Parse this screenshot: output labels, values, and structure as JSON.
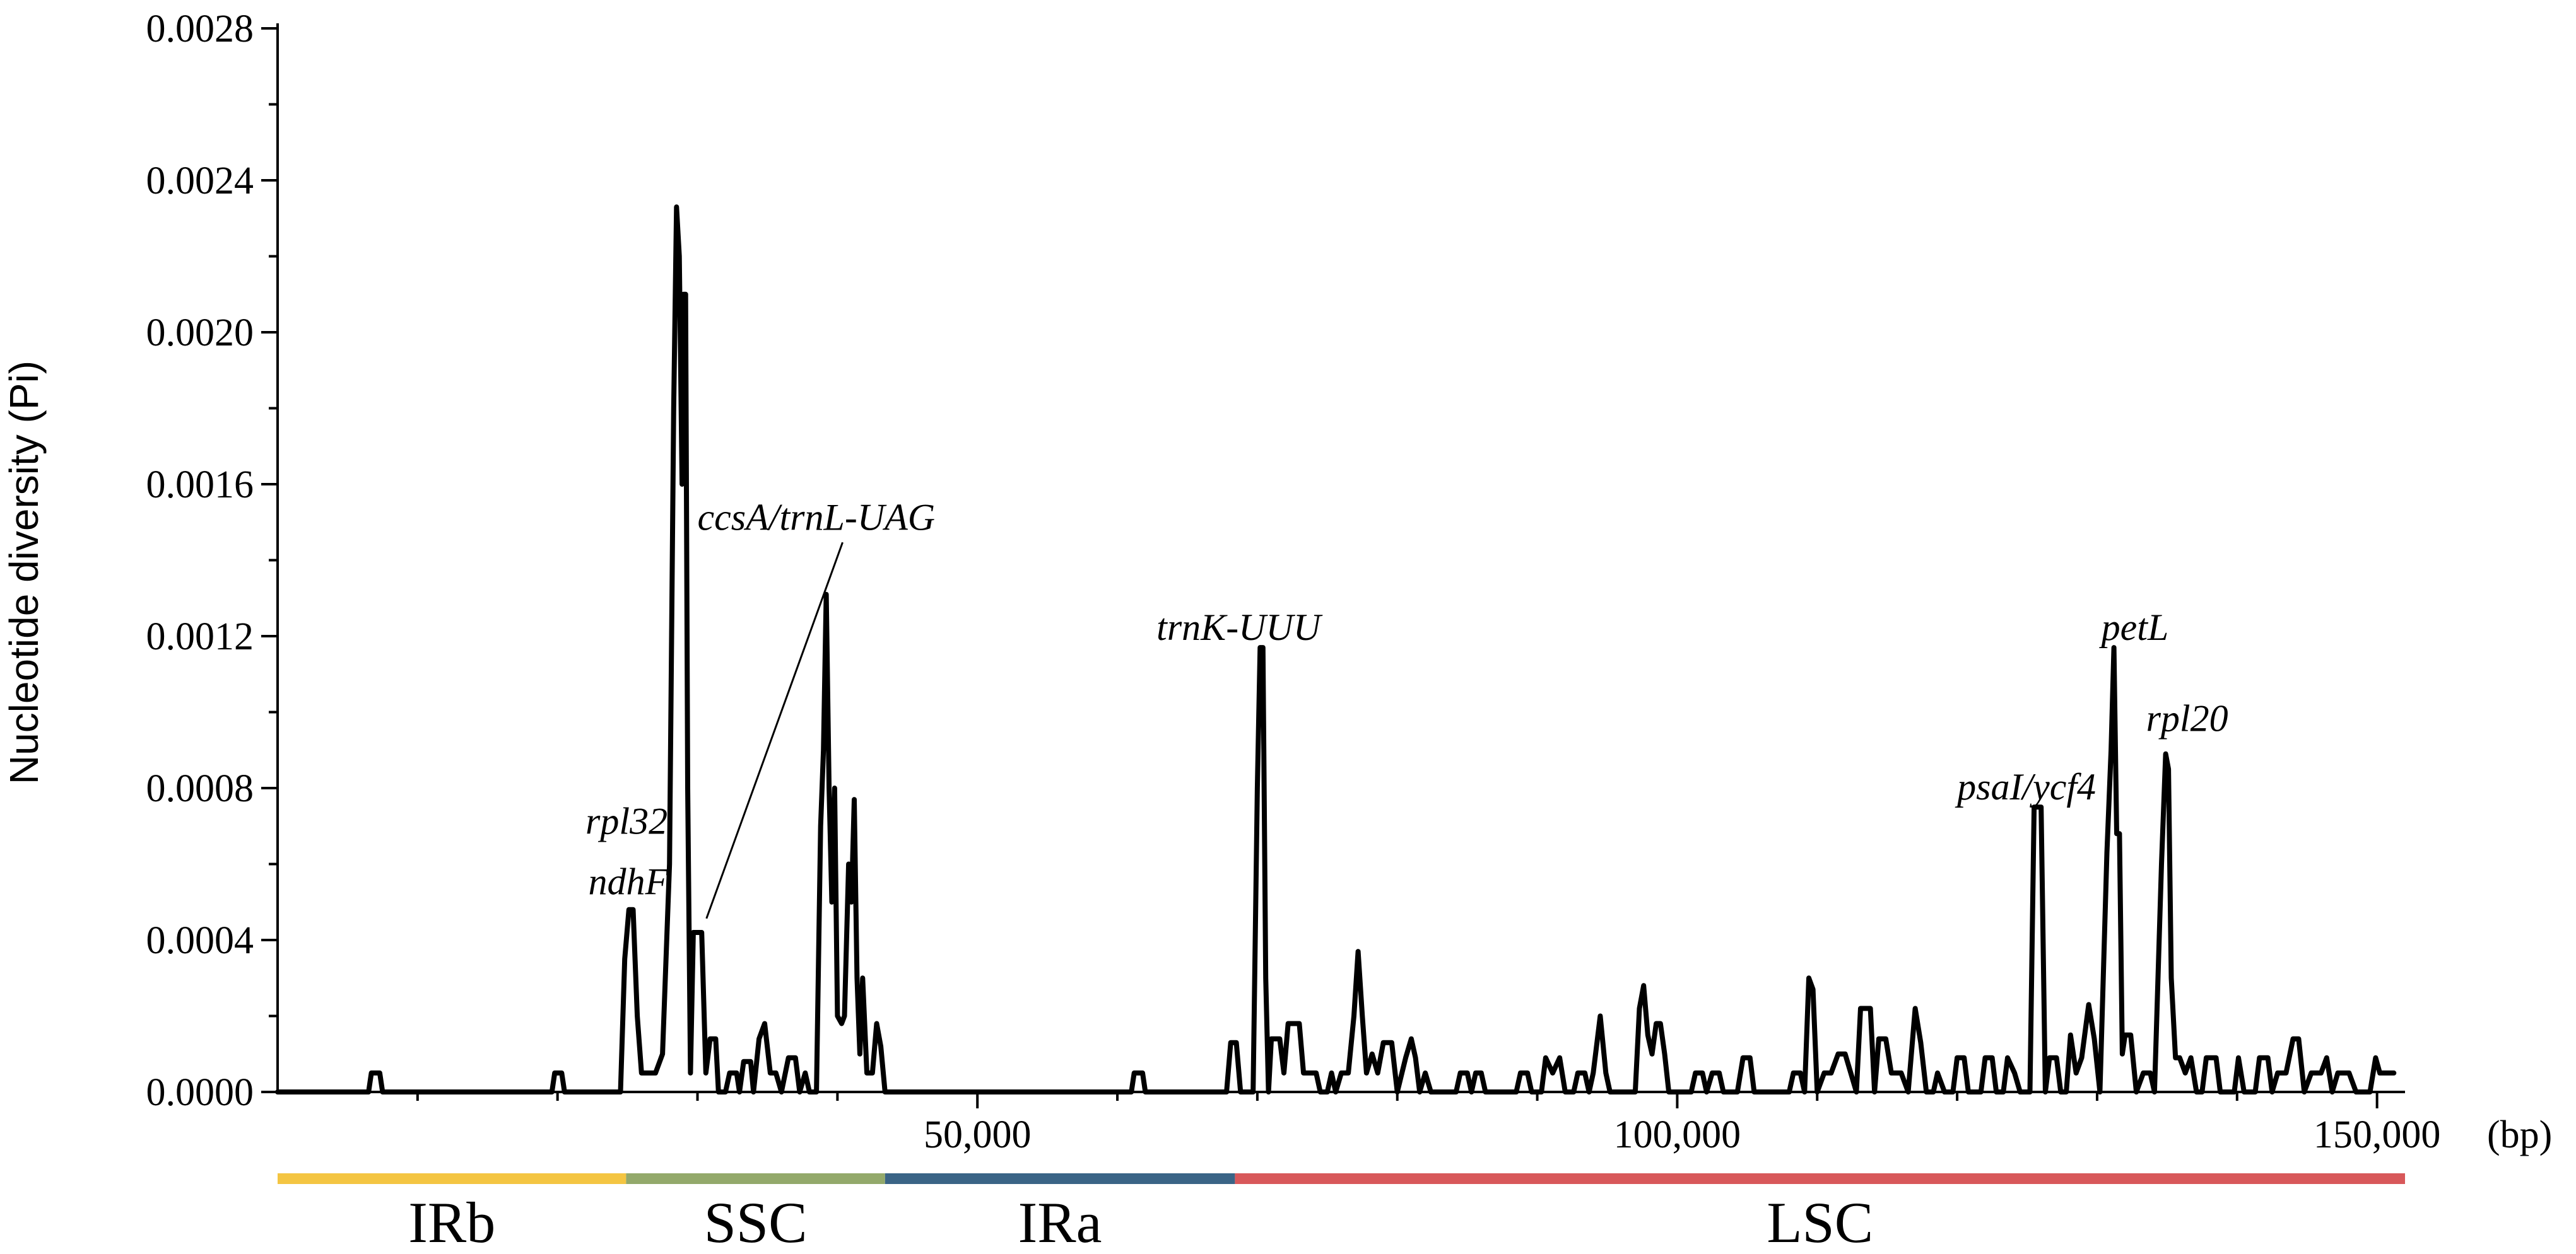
{
  "chart_data": {
    "type": "line",
    "title": "",
    "xlabel": "",
    "ylabel": "Nucleotide diversity (Pi)",
    "x_unit": "(bp)",
    "xlim": [
      0,
      152000
    ],
    "ylim": [
      0,
      0.0028
    ],
    "x_ticks": [
      50000,
      100000,
      150000
    ],
    "x_tick_labels": [
      "50,000",
      "100,000",
      "150,000"
    ],
    "y_ticks": [
      0,
      0.0004,
      0.0008,
      0.0012,
      0.0016,
      0.002,
      0.0024,
      0.0028
    ],
    "y_tick_labels": [
      "0.0000",
      "0.0004",
      "0.0008",
      "0.0012",
      "0.0016",
      "0.0020",
      "0.0024",
      "0.0028"
    ],
    "y_minor_step": 0.0002,
    "grid": false,
    "line_color": "#000000",
    "series": [
      {
        "values": [
          [
            0,
            0
          ],
          [
            6500,
            0
          ],
          [
            6700,
            5e-05
          ],
          [
            7300,
            5e-05
          ],
          [
            7500,
            0
          ],
          [
            19600,
            0
          ],
          [
            19800,
            5e-05
          ],
          [
            20300,
            5e-05
          ],
          [
            20500,
            0
          ],
          [
            24500,
            0
          ],
          [
            24800,
            0.00035
          ],
          [
            25100,
            0.00048
          ],
          [
            25400,
            0.00048
          ],
          [
            25700,
            0.0002
          ],
          [
            26000,
            5e-05
          ],
          [
            27000,
            5e-05
          ],
          [
            27500,
            0.0001
          ],
          [
            28000,
            0.0006
          ],
          [
            28300,
            0.0018
          ],
          [
            28500,
            0.00233
          ],
          [
            28700,
            0.0022
          ],
          [
            28900,
            0.0016
          ],
          [
            29000,
            0.0021
          ],
          [
            29150,
            0.0021
          ],
          [
            29300,
            0.0008
          ],
          [
            29500,
            5e-05
          ],
          [
            29700,
            0.00042
          ],
          [
            30300,
            0.00042
          ],
          [
            30600,
            5e-05
          ],
          [
            30900,
            0.00014
          ],
          [
            31300,
            0.00014
          ],
          [
            31500,
            0
          ],
          [
            32000,
            0
          ],
          [
            32300,
            5e-05
          ],
          [
            32800,
            5e-05
          ],
          [
            33000,
            0
          ],
          [
            33300,
            8e-05
          ],
          [
            33800,
            8e-05
          ],
          [
            34000,
            0
          ],
          [
            34400,
            0.00014
          ],
          [
            34800,
            0.00018
          ],
          [
            35200,
            5e-05
          ],
          [
            35600,
            5e-05
          ],
          [
            36000,
            0
          ],
          [
            36500,
            9e-05
          ],
          [
            37000,
            9e-05
          ],
          [
            37300,
            0
          ],
          [
            37700,
            5e-05
          ],
          [
            38000,
            0
          ],
          [
            38500,
            0
          ],
          [
            38800,
            0.0007
          ],
          [
            39000,
            0.0009
          ],
          [
            39200,
            0.00131
          ],
          [
            39400,
            0.0008
          ],
          [
            39600,
            0.0005
          ],
          [
            39800,
            0.0008
          ],
          [
            40000,
            0.0002
          ],
          [
            40300,
            0.00018
          ],
          [
            40500,
            0.0002
          ],
          [
            40800,
            0.0006
          ],
          [
            41000,
            0.0005
          ],
          [
            41200,
            0.00077
          ],
          [
            41400,
            0.0003
          ],
          [
            41600,
            0.0001
          ],
          [
            41800,
            0.0003
          ],
          [
            42100,
            5e-05
          ],
          [
            42500,
            5e-05
          ],
          [
            42800,
            0.00018
          ],
          [
            43100,
            0.00012
          ],
          [
            43400,
            0
          ],
          [
            61000,
            0
          ],
          [
            61200,
            5e-05
          ],
          [
            61800,
            5e-05
          ],
          [
            62000,
            0
          ],
          [
            67800,
            0
          ],
          [
            68100,
            0.00013
          ],
          [
            68500,
            0.00013
          ],
          [
            68800,
            0
          ],
          [
            69700,
            0
          ],
          [
            70000,
            0.0008
          ],
          [
            70200,
            0.00117
          ],
          [
            70400,
            0.00117
          ],
          [
            70600,
            0.0003
          ],
          [
            70800,
            0
          ],
          [
            71000,
            0.00014
          ],
          [
            71600,
            0.00014
          ],
          [
            71900,
            5e-05
          ],
          [
            72200,
            0.00018
          ],
          [
            73000,
            0.00018
          ],
          [
            73300,
            5e-05
          ],
          [
            74200,
            5e-05
          ],
          [
            74500,
            0
          ],
          [
            75000,
            0
          ],
          [
            75300,
            5e-05
          ],
          [
            75600,
            0
          ],
          [
            76000,
            5e-05
          ],
          [
            76500,
            5e-05
          ],
          [
            76900,
            0.0002
          ],
          [
            77200,
            0.00037
          ],
          [
            77500,
            0.0002
          ],
          [
            77800,
            5e-05
          ],
          [
            78200,
            0.0001
          ],
          [
            78600,
            5e-05
          ],
          [
            79000,
            0.00013
          ],
          [
            79600,
            0.00013
          ],
          [
            80000,
            0
          ],
          [
            80600,
            9e-05
          ],
          [
            81000,
            0.00014
          ],
          [
            81300,
            9e-05
          ],
          [
            81600,
            0
          ],
          [
            82000,
            5e-05
          ],
          [
            82400,
            0
          ],
          [
            84200,
            0
          ],
          [
            84500,
            5e-05
          ],
          [
            85000,
            5e-05
          ],
          [
            85300,
            0
          ],
          [
            85600,
            5e-05
          ],
          [
            86000,
            5e-05
          ],
          [
            86300,
            0
          ],
          [
            88500,
            0
          ],
          [
            88800,
            5e-05
          ],
          [
            89300,
            5e-05
          ],
          [
            89600,
            0
          ],
          [
            90300,
            0
          ],
          [
            90600,
            9e-05
          ],
          [
            91100,
            5e-05
          ],
          [
            91600,
            9e-05
          ],
          [
            92000,
            0
          ],
          [
            92600,
            0
          ],
          [
            92900,
            5e-05
          ],
          [
            93400,
            5e-05
          ],
          [
            93700,
            0
          ],
          [
            94000,
            5e-05
          ],
          [
            94500,
            0.0002
          ],
          [
            94900,
            5e-05
          ],
          [
            95200,
            0
          ],
          [
            97000,
            0
          ],
          [
            97300,
            0.00022
          ],
          [
            97600,
            0.00028
          ],
          [
            97900,
            0.00015
          ],
          [
            98200,
            0.0001
          ],
          [
            98500,
            0.00018
          ],
          [
            98800,
            0.00018
          ],
          [
            99100,
            0.0001
          ],
          [
            99400,
            0
          ],
          [
            101000,
            0
          ],
          [
            101300,
            5e-05
          ],
          [
            101800,
            5e-05
          ],
          [
            102100,
            0
          ],
          [
            102500,
            5e-05
          ],
          [
            103000,
            5e-05
          ],
          [
            103300,
            0
          ],
          [
            104300,
            0
          ],
          [
            104700,
            9e-05
          ],
          [
            105200,
            9e-05
          ],
          [
            105500,
            0
          ],
          [
            108000,
            0
          ],
          [
            108300,
            5e-05
          ],
          [
            108800,
            5e-05
          ],
          [
            109100,
            0
          ],
          [
            109400,
            0.0003
          ],
          [
            109700,
            0.00027
          ],
          [
            110000,
            0
          ],
          [
            110500,
            5e-05
          ],
          [
            111000,
            5e-05
          ],
          [
            111500,
            0.0001
          ],
          [
            112000,
            0.0001
          ],
          [
            112400,
            5e-05
          ],
          [
            112800,
            0
          ],
          [
            113100,
            0.00022
          ],
          [
            113800,
            0.00022
          ],
          [
            114100,
            0
          ],
          [
            114400,
            0.00014
          ],
          [
            114900,
            0.00014
          ],
          [
            115300,
            5e-05
          ],
          [
            116000,
            5e-05
          ],
          [
            116500,
            0
          ],
          [
            117000,
            0.00022
          ],
          [
            117400,
            0.00013
          ],
          [
            117800,
            0
          ],
          [
            118300,
            0
          ],
          [
            118600,
            5e-05
          ],
          [
            119100,
            0
          ],
          [
            119700,
            0
          ],
          [
            120000,
            9e-05
          ],
          [
            120500,
            9e-05
          ],
          [
            120800,
            0
          ],
          [
            121700,
            0
          ],
          [
            122000,
            9e-05
          ],
          [
            122500,
            9e-05
          ],
          [
            122800,
            0
          ],
          [
            123300,
            0
          ],
          [
            123600,
            9e-05
          ],
          [
            124100,
            5e-05
          ],
          [
            124500,
            0
          ],
          [
            125200,
            0
          ],
          [
            125500,
            0.00075
          ],
          [
            126000,
            0.00075
          ],
          [
            126300,
            0
          ],
          [
            126600,
            9e-05
          ],
          [
            127100,
            9e-05
          ],
          [
            127400,
            0
          ],
          [
            127800,
            0
          ],
          [
            128100,
            0.00015
          ],
          [
            128500,
            5e-05
          ],
          [
            128900,
            9e-05
          ],
          [
            129400,
            0.00023
          ],
          [
            129800,
            0.00014
          ],
          [
            130200,
            0
          ],
          [
            130700,
            0.00063
          ],
          [
            131000,
            0.0009
          ],
          [
            131200,
            0.00117
          ],
          [
            131400,
            0.00068
          ],
          [
            131600,
            0.00068
          ],
          [
            131800,
            0.0001
          ],
          [
            132000,
            0.00015
          ],
          [
            132400,
            0.00015
          ],
          [
            132800,
            0
          ],
          [
            133300,
            5e-05
          ],
          [
            133800,
            5e-05
          ],
          [
            134100,
            0
          ],
          [
            134600,
            0.0006
          ],
          [
            134900,
            0.00089
          ],
          [
            135100,
            0.00085
          ],
          [
            135300,
            0.0003
          ],
          [
            135600,
            9e-05
          ],
          [
            135900,
            9e-05
          ],
          [
            136300,
            5e-05
          ],
          [
            136700,
            9e-05
          ],
          [
            137100,
            0
          ],
          [
            137500,
            0
          ],
          [
            137800,
            9e-05
          ],
          [
            138500,
            9e-05
          ],
          [
            138800,
            0
          ],
          [
            139800,
            0
          ],
          [
            140100,
            9e-05
          ],
          [
            140500,
            0
          ],
          [
            141300,
            0
          ],
          [
            141600,
            9e-05
          ],
          [
            142200,
            9e-05
          ],
          [
            142500,
            0
          ],
          [
            142900,
            5e-05
          ],
          [
            143500,
            5e-05
          ],
          [
            144000,
            0.00014
          ],
          [
            144400,
            0.00014
          ],
          [
            144800,
            0
          ],
          [
            145300,
            5e-05
          ],
          [
            146000,
            5e-05
          ],
          [
            146400,
            9e-05
          ],
          [
            146800,
            0
          ],
          [
            147200,
            5e-05
          ],
          [
            148000,
            5e-05
          ],
          [
            148500,
            0
          ],
          [
            149500,
            0
          ],
          [
            149900,
            9e-05
          ],
          [
            150200,
            5e-05
          ],
          [
            151200,
            5e-05
          ]
        ]
      }
    ],
    "annotations": [
      {
        "text": "rpl32",
        "x": 22000,
        "y": 0.00068
      },
      {
        "text": "ndhF",
        "x": 22200,
        "y": 0.00052
      },
      {
        "text": "ccsA/trnL-UAG",
        "x": 30000,
        "y": 0.00148,
        "leader_to": [
          30100,
          0.00044
        ]
      },
      {
        "text": "trnK-UUU",
        "x": 62800,
        "y": 0.00119
      },
      {
        "text": "psaI/ycf4",
        "x": 120000,
        "y": 0.00077
      },
      {
        "text": "petL",
        "x": 130300,
        "y": 0.00119
      },
      {
        "text": "rpl20",
        "x": 133500,
        "y": 0.00095
      }
    ],
    "regions": [
      {
        "label": "IRb",
        "start": 0,
        "end": 24900,
        "color": "#F4C542"
      },
      {
        "label": "SSC",
        "start": 24900,
        "end": 43400,
        "color": "#93A96B"
      },
      {
        "label": "IRa",
        "start": 43400,
        "end": 68400,
        "color": "#3A6486"
      },
      {
        "label": "LSC",
        "start": 68400,
        "end": 152000,
        "color": "#D8585A"
      }
    ]
  }
}
